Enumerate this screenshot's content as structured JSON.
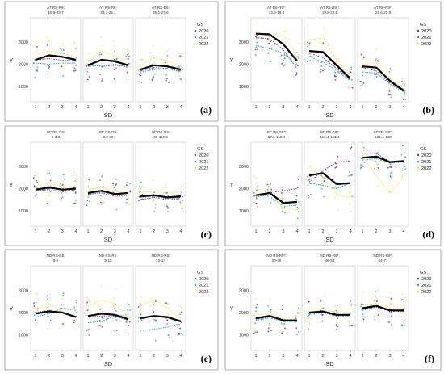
{
  "chart_data": [
    {
      "type": "line",
      "panel_label": "(a)",
      "legend_title": "GS",
      "legend_entries": [
        "2020",
        "2021",
        "2022"
      ],
      "colors": {
        "2020": "#7b2f8c",
        "2021": "#29a3b8",
        "2022": "#f0e04a",
        "mean": "#000000"
      },
      "xlabel": "SD",
      "ylabel": "Y",
      "x_ticks": [
        1,
        2,
        3,
        4
      ],
      "y_ticks": [
        1000,
        2000,
        3000
      ],
      "ylim": [
        300,
        4100
      ],
      "subplots": [
        {
          "title": [
            "AT RS-R6:",
            "15.9-23.7"
          ],
          "mean": [
            2200,
            2400,
            2330,
            2200
          ],
          "series": [
            [
              2200,
              2250,
              2180,
              2150
            ],
            [
              2050,
              2000,
              2050,
              2050
            ],
            [
              2480,
              2600,
              2500,
              2300
            ]
          ]
        },
        {
          "title": [
            "AT RS-R6:",
            "23.7-25.1"
          ],
          "mean": [
            1950,
            2200,
            2130,
            1950
          ],
          "series": [
            [
              2000,
              1900,
              1950,
              1900
            ],
            [
              1900,
              1950,
              2000,
              1850
            ],
            [
              2150,
              2600,
              2400,
              2100
            ]
          ]
        },
        {
          "title": [
            "AT RS-R6:",
            "25.1-27.6"
          ],
          "mean": [
            1760,
            1950,
            1900,
            1760
          ],
          "series": [
            [
              1700,
              1850,
              1800,
              1700
            ],
            [
              1650,
              1750,
              1800,
              1650
            ],
            [
              1950,
              2300,
              2150,
              1900
            ]
          ]
        }
      ]
    },
    {
      "type": "line",
      "panel_label": "(b)",
      "legend_title": "GS",
      "legend_entries": [
        "2020",
        "2021",
        "2022"
      ],
      "colors": {
        "2020": "#7b2f8c",
        "2021": "#29a3b8",
        "2022": "#f0e04a",
        "mean": "#000000"
      },
      "xlabel": "SD",
      "ylabel": "Y",
      "x_ticks": [
        1,
        2,
        3,
        4
      ],
      "y_ticks": [
        1000,
        2000,
        3000
      ],
      "ylim": [
        300,
        4100
      ],
      "subplots": [
        {
          "title": [
            "AT R6-R9*:",
            "13.9-19.8"
          ],
          "mean": [
            3380,
            3350,
            2900,
            2150
          ],
          "series": [
            [
              3200,
              3150,
              2650,
              1800
            ],
            [
              2850,
              2700,
              2500,
              2000
            ],
            [
              3500,
              3250,
              3300,
              2500
            ]
          ]
        },
        {
          "title": [
            "AT R6-R9*:",
            "19.8-22.6"
          ],
          "mean": [
            2600,
            2550,
            1950,
            1350
          ],
          "series": [
            [
              2500,
              2300,
              1800,
              1300
            ],
            [
              2350,
              2100,
              1700,
              1250
            ],
            [
              3100,
              3200,
              2200,
              1500
            ]
          ]
        },
        {
          "title": [
            "AT R6-R9*:",
            "22.6-25.9"
          ],
          "mean": [
            1900,
            1850,
            1250,
            800
          ],
          "series": [
            [
              1850,
              1700,
              1150,
              800
            ],
            [
              1650,
              1600,
              1100,
              750
            ],
            [
              2000,
              2050,
              1350,
              850
            ]
          ]
        }
      ]
    },
    {
      "type": "line",
      "panel_label": "(c)",
      "legend_title": "GS",
      "legend_entries": [
        "2020",
        "2021",
        "2022"
      ],
      "colors": {
        "2020": "#7b2f8c",
        "2021": "#29a3b8",
        "2022": "#f0e04a",
        "mean": "#000000"
      },
      "xlabel": "SD",
      "ylabel": "Y",
      "x_ticks": [
        1,
        2,
        3,
        4
      ],
      "y_ticks": [
        1000,
        2000,
        3000
      ],
      "ylim": [
        300,
        4100
      ],
      "subplots": [
        {
          "title": [
            "SP RS-R6:",
            "0-3.3"
          ],
          "mean": [
            1950,
            2050,
            1950,
            2000
          ],
          "series": [
            [
              1900,
              1950,
              1850,
              1950
            ],
            [
              1900,
              2000,
              2000,
              1950
            ],
            [
              2100,
              2300,
              2050,
              2100
            ]
          ]
        },
        {
          "title": [
            "SP RS-R6:",
            "3.3-30"
          ],
          "mean": [
            1800,
            1900,
            1750,
            1800
          ],
          "series": [
            [
              1750,
              1800,
              1650,
              1700
            ],
            [
              1700,
              1850,
              1750,
              1800
            ],
            [
              1950,
              2050,
              1850,
              1900
            ]
          ]
        },
        {
          "title": [
            "SP RS-R6:",
            "30-116.6"
          ],
          "mean": [
            1650,
            1700,
            1600,
            1650
          ],
          "series": [
            [
              1500,
              1600,
              1500,
              1550
            ],
            [
              1600,
              1650,
              1550,
              1600
            ],
            [
              1850,
              1850,
              1800,
              1850
            ]
          ]
        }
      ]
    },
    {
      "type": "line",
      "panel_label": "(d)",
      "legend_title": "GS",
      "legend_entries": [
        "2020",
        "2021",
        "2022"
      ],
      "colors": {
        "2020": "#7b2f8c",
        "2021": "#29a3b8",
        "2022": "#f0e04a",
        "mean": "#000000"
      },
      "xlabel": "SD",
      "ylabel": "Y",
      "x_ticks": [
        1,
        2,
        3,
        4
      ],
      "y_ticks": [
        1000,
        2000,
        3000
      ],
      "ylim": [
        300,
        4100
      ],
      "subplots": [
        {
          "title": [
            "SP R6-R9*:",
            "57.6-116.4"
          ],
          "mean": [
            1700,
            1800,
            1350,
            1400
          ],
          "series": [
            [
              1600,
              1800,
              1900,
              2000
            ],
            [
              1700,
              1650,
              1200,
              1250
            ],
            [
              1900,
              1850,
              1100,
              1050
            ]
          ]
        },
        {
          "title": [
            "SP R6-R9*:",
            "116.4-181.4"
          ],
          "mean": [
            2600,
            2700,
            2200,
            2250
          ],
          "series": [
            [
              2300,
              2800,
              3200,
              3250
            ],
            [
              2250,
              2150,
              2000,
              2250
            ],
            [
              3000,
              2500,
              1700,
              1600
            ]
          ]
        },
        {
          "title": [
            "SP R6-R9*:",
            "181.4-448"
          ],
          "mean": [
            3400,
            3450,
            3200,
            3250
          ],
          "series": [
            [
              3600,
              3600,
              3200,
              3250
            ],
            [
              3300,
              3350,
              3150,
              3200
            ],
            [
              3500,
              2600,
              1800,
              2500
            ]
          ]
        }
      ]
    },
    {
      "type": "line",
      "panel_label": "(e)",
      "legend_title": "GS",
      "legend_entries": [
        "2020",
        "2021",
        "2022"
      ],
      "colors": {
        "2020": "#7b2f8c",
        "2021": "#29a3b8",
        "2022": "#f0e04a",
        "mean": "#000000"
      },
      "xlabel": "SD",
      "ylabel": "Y",
      "x_ticks": [
        1,
        2,
        3,
        4
      ],
      "y_ticks": [
        1000,
        2000,
        3000
      ],
      "ylim": [
        300,
        4100
      ],
      "subplots": [
        {
          "title": [
            "ND RS-R6:",
            "6-9"
          ],
          "mean": [
            1950,
            2050,
            2000,
            1800
          ],
          "series": [
            [
              2000,
              2100,
              2000,
              1800
            ],
            [
              1800,
              1950,
              2200,
              2100
            ],
            [
              2150,
              2400,
              2050,
              1800
            ]
          ]
        },
        {
          "title": [
            "ND RS-R6:",
            "9-10"
          ],
          "mean": [
            1850,
            1950,
            1900,
            1700
          ],
          "series": [
            [
              1800,
              1850,
              1850,
              1650
            ],
            [
              1550,
              1600,
              1850,
              1900
            ],
            [
              2300,
              2550,
              2400,
              1800
            ]
          ]
        },
        {
          "title": [
            "ND RS-R6:",
            "10-13"
          ],
          "mean": [
            1750,
            1850,
            1800,
            1600
          ],
          "series": [
            [
              1700,
              1850,
              1800,
              1650
            ],
            [
              1200,
              1250,
              1350,
              1500
            ],
            [
              2300,
              2600,
              2200,
              1700
            ]
          ]
        }
      ]
    },
    {
      "type": "line",
      "panel_label": "(f)",
      "legend_title": "GS",
      "legend_entries": [
        "2020",
        "2021",
        "2022"
      ],
      "colors": {
        "2020": "#7b2f8c",
        "2021": "#29a3b8",
        "2022": "#f0e04a",
        "mean": "#000000"
      },
      "xlabel": "SD",
      "ylabel": "Y",
      "x_ticks": [
        1,
        2,
        3,
        4
      ],
      "y_ticks": [
        1000,
        2000,
        3000
      ],
      "ylim": [
        300,
        4100
      ],
      "subplots": [
        {
          "title": [
            "ND R6-R9*:",
            "30-46"
          ],
          "mean": [
            1750,
            1850,
            1650,
            1650
          ],
          "series": [
            [
              1700,
              1800,
              1650,
              1650
            ],
            [
              1650,
              1750,
              1600,
              1600
            ],
            [
              1900,
              1950,
              1700,
              1700
            ]
          ]
        },
        {
          "title": [
            "ND R6-R9*:",
            "46-54"
          ],
          "mean": [
            2000,
            2050,
            1900,
            1900
          ],
          "series": [
            [
              1950,
              2000,
              1850,
              1850
            ],
            [
              1900,
              2000,
              1850,
              1850
            ],
            [
              2150,
              2150,
              2000,
              2000
            ]
          ]
        },
        {
          "title": [
            "ND R6-R9*:",
            "54-71"
          ],
          "mean": [
            2200,
            2300,
            2100,
            2100
          ],
          "series": [
            [
              2150,
              2250,
              2050,
              2050
            ],
            [
              2100,
              2250,
              2100,
              2100
            ],
            [
              2350,
              2400,
              2250,
              2200
            ]
          ]
        }
      ]
    }
  ]
}
